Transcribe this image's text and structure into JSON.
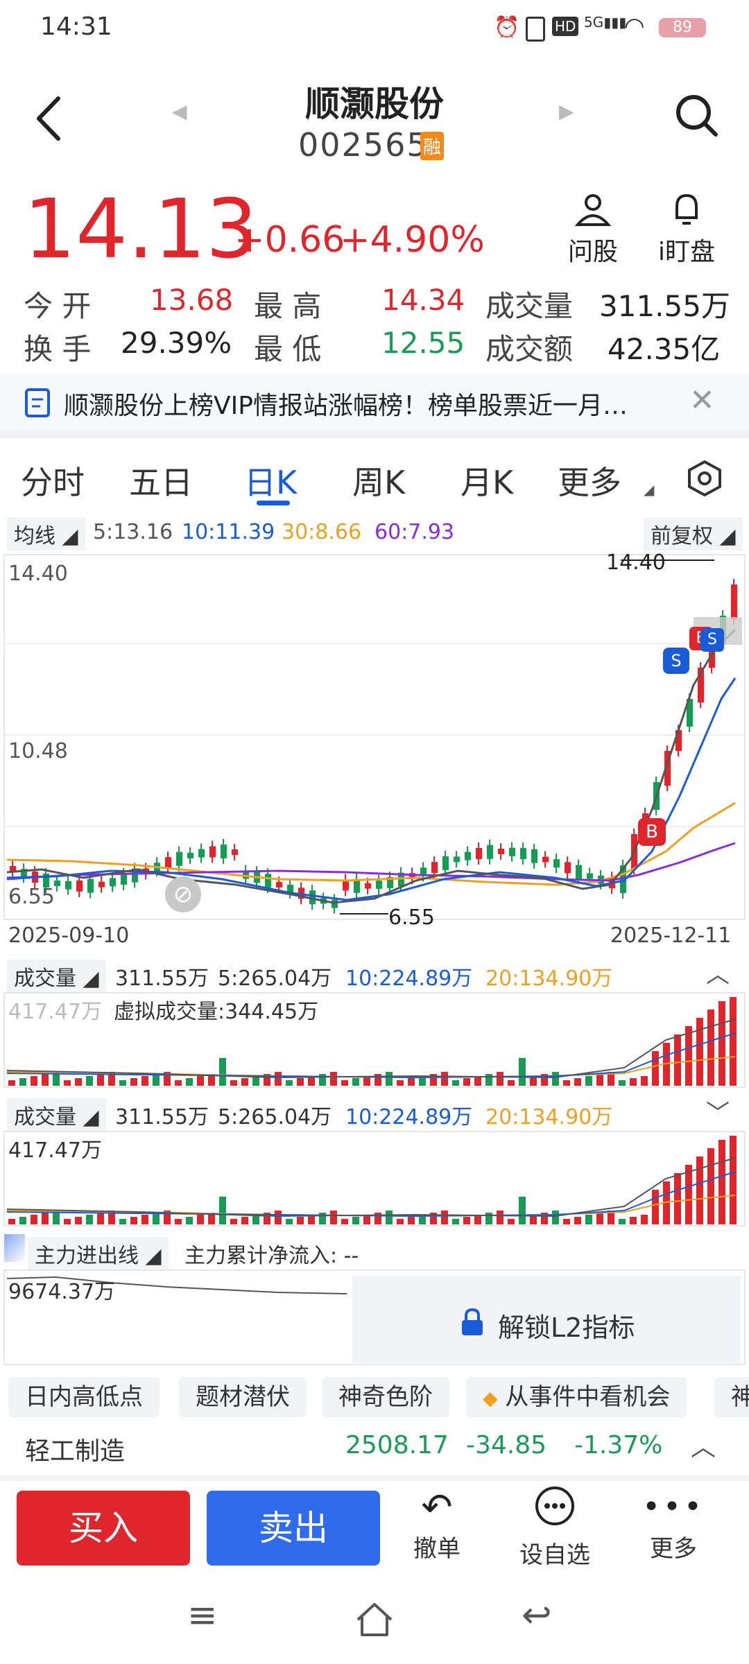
{
  "status_bar": {
    "time": "14:31",
    "battery": "89"
  },
  "header": {
    "title": "顺灏股份",
    "code": "002565",
    "margin_badge": "融"
  },
  "quote": {
    "price": "14.13",
    "change": "+0.66",
    "change_pct": "+4.90%",
    "ask_label": "问股",
    "watch_label": "i盯盘",
    "open_label": "今 开",
    "open": "13.68",
    "high_label": "最 高",
    "high": "14.34",
    "volume_label": "成交量",
    "volume": "311.55万",
    "turnover_label": "换 手",
    "turnover": "29.39%",
    "low_label": "最 低",
    "low": "12.55",
    "amount_label": "成交额",
    "amount": "42.35亿"
  },
  "news": {
    "text": "顺灏股份上榜VIP情报站涨幅榜！榜单股票近一月…"
  },
  "tabs": [
    "分时",
    "五日",
    "日K",
    "周K",
    "月K",
    "更多"
  ],
  "active_tab": "日K",
  "ma_bar": {
    "label": "均线",
    "ma5": "5:13.16",
    "ma10": "10:11.39",
    "ma30": "30:8.66",
    "ma60": "60:7.93",
    "adjust": "前复权"
  },
  "colors": {
    "up": "#e0262d",
    "down": "#1a9b55",
    "ma5": "#555555",
    "ma10": "#1a5bd8",
    "ma30": "#f0a020",
    "ma60": "#8a2be2",
    "accent": "#1a5bd8"
  },
  "kline": {
    "y_top": "14.40",
    "y_mid": "10.48",
    "y_bottom": "6.55",
    "max_marker": "14.40",
    "min_marker": "6.55",
    "date_start": "2025-09-10",
    "date_end": "2025-12-11",
    "buy_marker": "B",
    "sell_marker": "S"
  },
  "volume_panel_1": {
    "label": "成交量",
    "vol": "311.55万",
    "ma5": "5:265.04万",
    "ma10": "10:224.89万",
    "ma20": "20:134.90万",
    "max": "417.47万",
    "virtual": "虚拟成交量:344.45万"
  },
  "volume_panel_2": {
    "label": "成交量",
    "vol": "311.55万",
    "ma5": "5:265.04万",
    "ma10": "10:224.89万",
    "ma20": "20:134.90万",
    "max": "417.47万"
  },
  "capital_flow": {
    "label": "主力进出线",
    "net_label": "主力累计净流入: --",
    "value": "9674.37万",
    "unlock": "解锁L2指标"
  },
  "chips": [
    "日内高低点",
    "题材潜伏",
    "神奇色阶",
    "从事件中看机会",
    "神"
  ],
  "sector": {
    "name": "轻工制造",
    "index": "2508.17",
    "change": "-34.85",
    "change_pct": "-1.37%"
  },
  "bottom": {
    "buy": "买入",
    "sell": "卖出",
    "cancel": "撤单",
    "watchlist": "设自选",
    "more": "更多"
  }
}
